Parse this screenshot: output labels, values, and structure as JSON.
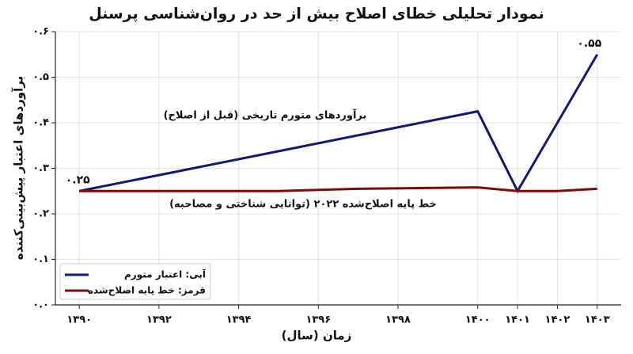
{
  "chart_data": {
    "type": "line",
    "title": "نمودار تحلیلی خطای اصلاح بیش از حد در روان‌شناسی پرسنل",
    "x_label": "زمان (سال)",
    "y_label": "برآوردهای اعتبار پیش‌بینی‌کننده",
    "annotations": [
      "برآوردهای متورم تاریخی (قبل از اصلاح)",
      "خط پایه اصلاح‌شده ۲۰۲۲ (توانایی شناختی و مصاحبه)"
    ],
    "series": [
      {
        "name": "آبی: اعتبار متورم",
        "color": "#111a6e",
        "x": [
          1390,
          1400,
          1401,
          1403
        ],
        "values": [
          0.25,
          0.425,
          0.25,
          0.55
        ],
        "value_labels": [
          "۰.۲۵",
          null,
          null,
          "۰.۵۵"
        ]
      },
      {
        "name": "قرمز: خط پایه اصلاح‌شده",
        "color": "#7a0c0c",
        "x": [
          1390,
          1395,
          1397,
          1400,
          1401,
          1402,
          1403
        ],
        "values": [
          0.25,
          0.25,
          0.255,
          0.258,
          0.25,
          0.25,
          0.255
        ]
      }
    ],
    "xlim": [
      1389.4,
      1403.6
    ],
    "ylim": [
      0,
      0.6
    ],
    "xticks": [
      {
        "value": 1390,
        "label": "۱۳۹۰"
      },
      {
        "value": 1392,
        "label": "۱۳۹۲"
      },
      {
        "value": 1394,
        "label": "۱۳۹۴"
      },
      {
        "value": 1396,
        "label": "۱۳۹۶"
      },
      {
        "value": 1398,
        "label": "۱۳۹۸"
      },
      {
        "value": 1400,
        "label": "۱۴۰۰"
      },
      {
        "value": 1401,
        "label": "۱۴۰۱"
      },
      {
        "value": 1402,
        "label": "۱۴۰۲"
      },
      {
        "value": 1403,
        "label": "۱۴۰۳"
      }
    ],
    "yticks": [
      {
        "value": 0,
        "label": "۰.۰"
      },
      {
        "value": 0.1,
        "label": "۰.۱"
      },
      {
        "value": 0.2,
        "label": "۰.۲"
      },
      {
        "value": 0.3,
        "label": "۰.۳"
      },
      {
        "value": 0.4,
        "label": "۰.۴"
      },
      {
        "value": 0.5,
        "label": "۰.۵"
      },
      {
        "value": 0.6,
        "label": "۰.۶"
      }
    ],
    "grid": true
  }
}
